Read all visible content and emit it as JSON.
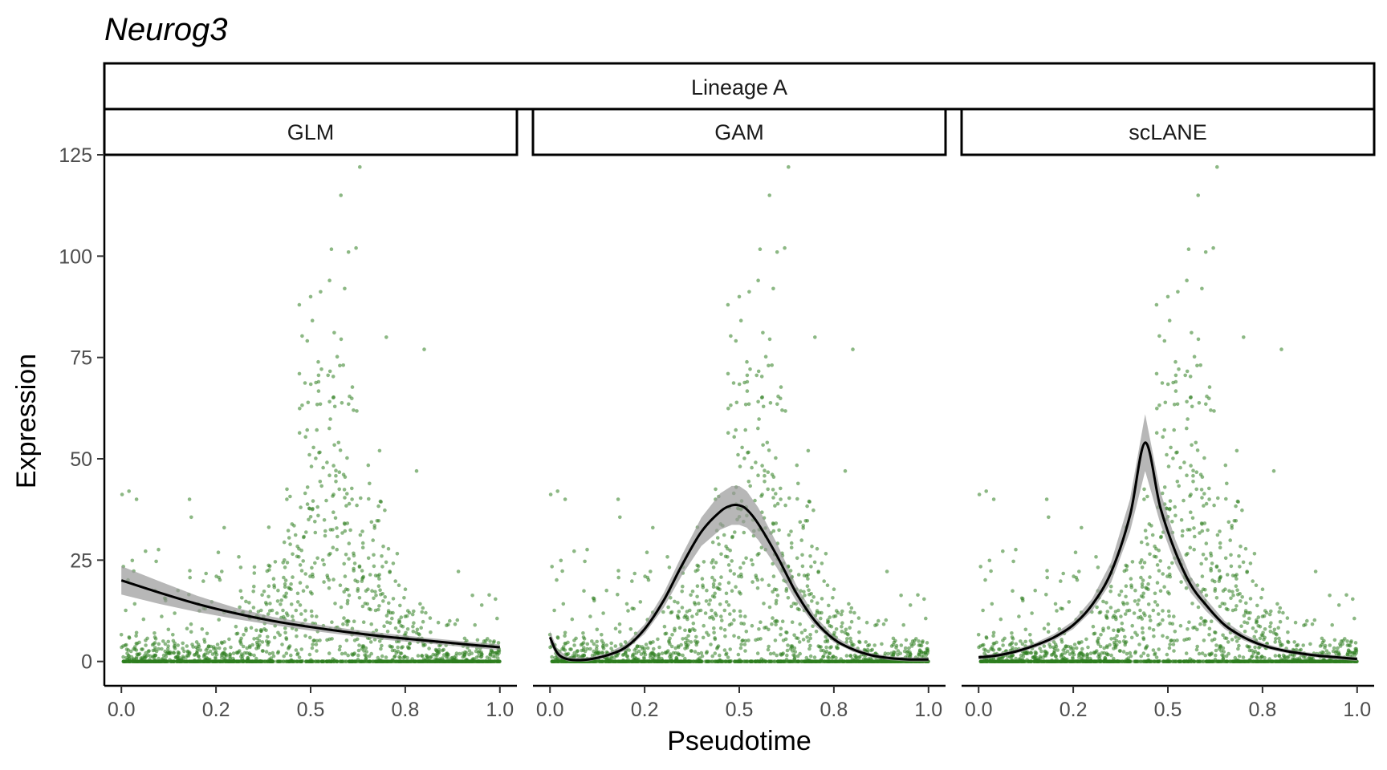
{
  "title": "Neurog3",
  "strip_top": "Lineage A",
  "colors": {
    "points": "#2e7d1f",
    "curve": "#000000",
    "band": "#999999"
  },
  "chart_data": {
    "type": "scatter",
    "title": "Neurog3",
    "xlabel": "Pseudotime",
    "ylabel": "Expression",
    "xlim": [
      -0.045,
      1.045
    ],
    "ylim": [
      -6,
      125
    ],
    "x_ticks": [
      0.0,
      0.25,
      0.5,
      0.75,
      1.0
    ],
    "x_tick_labels": [
      "0.0",
      "0.2",
      "0.5",
      "0.8",
      "1.0"
    ],
    "y_ticks": [
      0,
      25,
      50,
      75,
      100,
      125
    ],
    "y_tick_labels": [
      "0",
      "25",
      "50",
      "75",
      "100",
      "125"
    ],
    "grid": false,
    "legend": "none",
    "facet_row": "Lineage A",
    "panels": [
      {
        "name": "GLM",
        "fit": {
          "x": [
            0.0,
            0.1,
            0.2,
            0.3,
            0.4,
            0.5,
            0.6,
            0.7,
            0.8,
            0.9,
            1.0
          ],
          "y": [
            20,
            17,
            14.2,
            11.9,
            10.0,
            8.5,
            7.2,
            6.1,
            5.2,
            4.3,
            3.5
          ]
        },
        "band_halfwidth": [
          3.5,
          2.8,
          2.0,
          1.4,
          1.0,
          0.9,
          0.8,
          0.8,
          0.7,
          0.7,
          0.7
        ]
      },
      {
        "name": "GAM",
        "fit": {
          "x": [
            0.0,
            0.02,
            0.05,
            0.1,
            0.15,
            0.2,
            0.25,
            0.3,
            0.35,
            0.4,
            0.45,
            0.48,
            0.5,
            0.52,
            0.55,
            0.6,
            0.65,
            0.7,
            0.75,
            0.8,
            0.85,
            0.9,
            0.95,
            1.0
          ],
          "y": [
            6,
            2,
            0.5,
            0.5,
            1.5,
            3.5,
            8,
            15,
            24,
            32,
            37,
            38.5,
            38.5,
            37.5,
            34,
            26,
            17,
            10,
            5.5,
            3,
            1.5,
            0.8,
            0.5,
            0.5
          ]
        },
        "band_halfwidth": [
          1.5,
          1,
          0.5,
          0.5,
          0.5,
          0.8,
          1.2,
          1.8,
          2.5,
          3.5,
          4.5,
          4.8,
          4.8,
          4.5,
          4,
          3,
          2,
          1.2,
          0.8,
          0.6,
          0.5,
          0.5,
          0.5,
          0.5
        ]
      },
      {
        "name": "scLANE",
        "fit": {
          "x": [
            0.0,
            0.05,
            0.1,
            0.15,
            0.2,
            0.25,
            0.3,
            0.35,
            0.4,
            0.44,
            0.48,
            0.52,
            0.56,
            0.6,
            0.65,
            0.7,
            0.75,
            0.8,
            0.85,
            0.9,
            0.95,
            1.0
          ],
          "y": [
            1,
            1.5,
            2.5,
            4,
            6,
            9,
            14,
            22,
            36,
            54,
            38,
            27,
            19,
            14,
            9,
            6,
            4,
            2.8,
            2,
            1.4,
            1,
            0.6
          ]
        },
        "band_halfwidth": [
          0.5,
          0.5,
          0.5,
          0.6,
          0.8,
          1,
          1.5,
          2.5,
          4,
          7,
          4,
          3,
          2,
          1.5,
          1,
          0.8,
          0.6,
          0.5,
          0.5,
          0.5,
          0.5,
          0.5
        ]
      }
    ],
    "scatter_distribution": {
      "note_x_range": [
        0,
        1
      ],
      "zero_inflated": true,
      "peak_x": 0.55,
      "max_y": 122
    }
  }
}
